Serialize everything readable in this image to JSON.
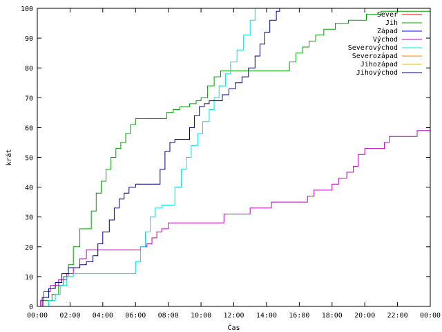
{
  "chart_data": {
    "type": "line",
    "xlabel": "Čas",
    "ylabel": "krát",
    "grid": false,
    "legend_placement": "top-right",
    "xlim": [
      0,
      24
    ],
    "ylim": [
      0,
      100
    ],
    "x_ticks": [
      {
        "value": 0,
        "label": "00:00"
      },
      {
        "value": 2,
        "label": "02:00"
      },
      {
        "value": 4,
        "label": "04:00"
      },
      {
        "value": 6,
        "label": "06:00"
      },
      {
        "value": 8,
        "label": "08:00"
      },
      {
        "value": 10,
        "label": "10:00"
      },
      {
        "value": 12,
        "label": "12:00"
      },
      {
        "value": 14,
        "label": "14:00"
      },
      {
        "value": 16,
        "label": "16:00"
      },
      {
        "value": 18,
        "label": "18:00"
      },
      {
        "value": 20,
        "label": "20:00"
      },
      {
        "value": 22,
        "label": "22:00"
      },
      {
        "value": 24,
        "label": "00:00"
      }
    ],
    "y_ticks": [
      0,
      10,
      20,
      30,
      40,
      50,
      60,
      70,
      80,
      90,
      100
    ],
    "series": [
      {
        "name": "Sever",
        "color": "#ff0000",
        "points": []
      },
      {
        "name": "Jih",
        "color": "#00a000",
        "points": [
          [
            0,
            0
          ],
          [
            0.4,
            2
          ],
          [
            0.9,
            4
          ],
          [
            1.3,
            7
          ],
          [
            1.6,
            10
          ],
          [
            1.9,
            14
          ],
          [
            2.2,
            20
          ],
          [
            2.6,
            26
          ],
          [
            3.0,
            26
          ],
          [
            3.3,
            32
          ],
          [
            3.6,
            38
          ],
          [
            3.9,
            42
          ],
          [
            4.2,
            46
          ],
          [
            4.5,
            50
          ],
          [
            4.8,
            53
          ],
          [
            5.1,
            55
          ],
          [
            5.4,
            58
          ],
          [
            5.7,
            61
          ],
          [
            6.0,
            63
          ],
          [
            7.7,
            63
          ],
          [
            7.9,
            65
          ],
          [
            8.3,
            66
          ],
          [
            8.7,
            67
          ],
          [
            9.3,
            68
          ],
          [
            9.7,
            69
          ],
          [
            10.0,
            70
          ],
          [
            10.4,
            74
          ],
          [
            10.8,
            77
          ],
          [
            11.2,
            79
          ],
          [
            15.2,
            79
          ],
          [
            15.4,
            82
          ],
          [
            15.8,
            85
          ],
          [
            16.2,
            87
          ],
          [
            16.6,
            89
          ],
          [
            17.0,
            91
          ],
          [
            17.5,
            93
          ],
          [
            18.2,
            95
          ],
          [
            19.0,
            96
          ],
          [
            20.1,
            98
          ],
          [
            21.0,
            99
          ],
          [
            24,
            99
          ]
        ]
      },
      {
        "name": "Západ",
        "color": "#0000ff",
        "points": []
      },
      {
        "name": "Východ",
        "color": "#c000c0",
        "points": [
          [
            0,
            0
          ],
          [
            0.2,
            2
          ],
          [
            0.4,
            5
          ],
          [
            0.8,
            7
          ],
          [
            1.3,
            9
          ],
          [
            1.8,
            11
          ],
          [
            2.2,
            13
          ],
          [
            2.6,
            16
          ],
          [
            3.0,
            19
          ],
          [
            6.0,
            19
          ],
          [
            6.3,
            20
          ],
          [
            6.7,
            21
          ],
          [
            7.0,
            23
          ],
          [
            7.3,
            25
          ],
          [
            7.6,
            26
          ],
          [
            8.0,
            28
          ],
          [
            11.2,
            28
          ],
          [
            11.4,
            31
          ],
          [
            12.8,
            31
          ],
          [
            13.0,
            33
          ],
          [
            14.1,
            33
          ],
          [
            14.3,
            35
          ],
          [
            16.2,
            35
          ],
          [
            16.5,
            37
          ],
          [
            16.9,
            39
          ],
          [
            17.8,
            39
          ],
          [
            18.0,
            41
          ],
          [
            18.4,
            43
          ],
          [
            18.9,
            45
          ],
          [
            19.3,
            47
          ],
          [
            19.6,
            51
          ],
          [
            20.0,
            53
          ],
          [
            21.0,
            53
          ],
          [
            21.2,
            55
          ],
          [
            21.5,
            57
          ],
          [
            23.0,
            57
          ],
          [
            23.2,
            59
          ],
          [
            24,
            59
          ]
        ]
      },
      {
        "name": "Severovýchod",
        "color": "#00e0e0",
        "points": [
          [
            0,
            0
          ],
          [
            0.7,
            2
          ],
          [
            1.1,
            4
          ],
          [
            1.4,
            7
          ],
          [
            1.8,
            10
          ],
          [
            2.2,
            11
          ],
          [
            5.8,
            11
          ],
          [
            6.0,
            15
          ],
          [
            6.3,
            20
          ],
          [
            6.6,
            25
          ],
          [
            6.9,
            30
          ],
          [
            7.2,
            33
          ],
          [
            7.6,
            34
          ],
          [
            8.1,
            34
          ],
          [
            8.4,
            40
          ],
          [
            8.8,
            46
          ],
          [
            9.1,
            50
          ],
          [
            9.4,
            54
          ],
          [
            9.8,
            58
          ],
          [
            10.1,
            62
          ],
          [
            10.5,
            66
          ],
          [
            10.8,
            70
          ],
          [
            11.1,
            74
          ],
          [
            11.5,
            78
          ],
          [
            11.8,
            82
          ],
          [
            12.2,
            86
          ],
          [
            12.6,
            91
          ],
          [
            13.0,
            96
          ],
          [
            13.3,
            100
          ],
          [
            24,
            100
          ]
        ]
      },
      {
        "name": "Severozápad",
        "color": "#ff8000",
        "points": []
      },
      {
        "name": "Jihozápad",
        "color": "#e0c000",
        "points": []
      },
      {
        "name": "Jihovýchod",
        "color": "#000080",
        "points": [
          [
            0,
            0
          ],
          [
            0.3,
            3
          ],
          [
            0.7,
            6
          ],
          [
            1.1,
            8
          ],
          [
            1.5,
            11
          ],
          [
            1.9,
            13
          ],
          [
            2.3,
            13
          ],
          [
            2.6,
            14
          ],
          [
            3.0,
            15
          ],
          [
            3.4,
            17
          ],
          [
            3.7,
            21
          ],
          [
            4.0,
            25
          ],
          [
            4.4,
            29
          ],
          [
            4.7,
            33
          ],
          [
            5.0,
            36
          ],
          [
            5.3,
            38
          ],
          [
            5.6,
            40
          ],
          [
            6.0,
            41
          ],
          [
            7.2,
            41
          ],
          [
            7.5,
            46
          ],
          [
            7.8,
            52
          ],
          [
            8.1,
            55
          ],
          [
            8.4,
            56
          ],
          [
            9.0,
            56
          ],
          [
            9.3,
            60
          ],
          [
            9.6,
            64
          ],
          [
            9.9,
            67
          ],
          [
            10.2,
            68
          ],
          [
            10.5,
            69
          ],
          [
            11.0,
            69
          ],
          [
            11.3,
            71
          ],
          [
            11.7,
            73
          ],
          [
            12.1,
            75
          ],
          [
            12.5,
            77
          ],
          [
            12.9,
            80
          ],
          [
            13.3,
            84
          ],
          [
            13.6,
            88
          ],
          [
            13.9,
            92
          ],
          [
            14.2,
            96
          ],
          [
            14.6,
            99
          ],
          [
            14.8,
            100
          ],
          [
            24,
            100
          ]
        ]
      }
    ]
  }
}
